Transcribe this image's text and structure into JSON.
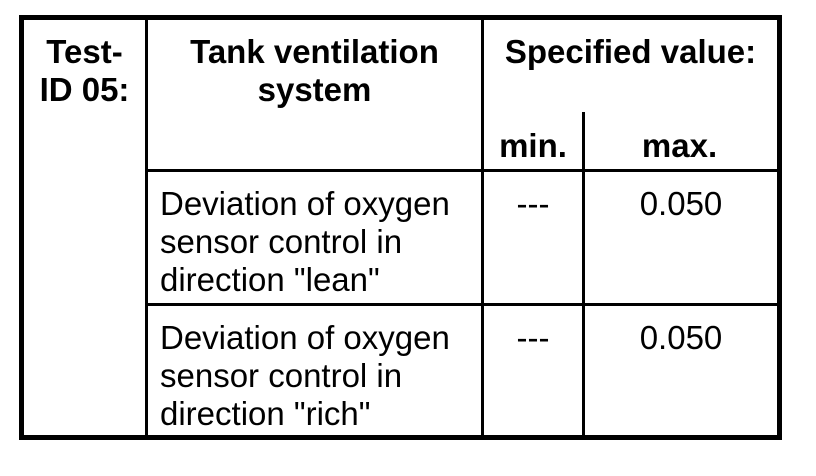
{
  "table": {
    "test_id_label": "Test-\nID 05:",
    "system_header": "Tank ventilation\nsystem",
    "specified_header": "Specified value:",
    "min_label": "min.",
    "max_label": "max.",
    "rows": [
      {
        "description": "Deviation of oxygen\nsensor control in\ndirection \"lean\"",
        "min": "---",
        "max": "0.050"
      },
      {
        "description": "Deviation of oxygen\nsensor control in\ndirection \"rich\"",
        "min": "---",
        "max": "0.050"
      }
    ],
    "colors": {
      "border": "#000000",
      "background": "#ffffff",
      "text": "#000000"
    }
  }
}
